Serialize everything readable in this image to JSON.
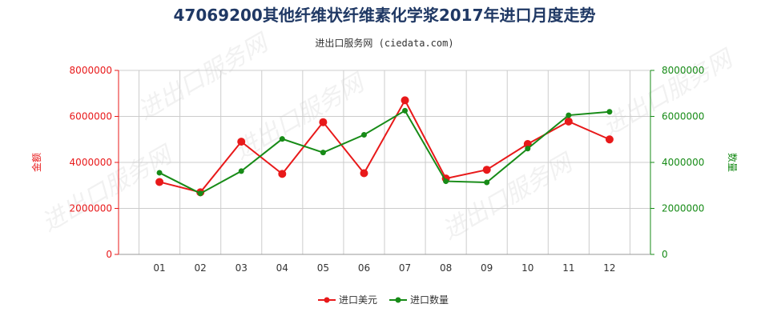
{
  "colors": {
    "red": "#e8191a",
    "green": "#178b17",
    "title": "#1f3864",
    "grid": "#cccccc",
    "axis": "#999999"
  },
  "watermark": "进出口服务网",
  "chart_data": {
    "type": "line",
    "title": "47069200其他纤维状纤维素化学浆2017年进口月度走势",
    "subtitle": "进出口服务网 (ciedata.com)",
    "categories": [
      "01",
      "02",
      "03",
      "04",
      "05",
      "06",
      "07",
      "08",
      "09",
      "10",
      "11",
      "12"
    ],
    "y_left": {
      "label": "金额",
      "ylim": [
        0,
        8000000
      ],
      "ticks": [
        "0",
        "2000000",
        "4000000",
        "6000000",
        "8000000"
      ]
    },
    "y_right": {
      "label": "数量",
      "ylim": [
        0,
        8000000
      ],
      "ticks": [
        "0",
        "2000000",
        "4000000",
        "6000000",
        "8000000"
      ]
    },
    "grid": true,
    "legend_position": "bottom",
    "series": [
      {
        "name": "进口美元",
        "axis": "left",
        "color": "#e8191a",
        "values": [
          3150000,
          2700000,
          4900000,
          3500000,
          5750000,
          3530000,
          6700000,
          3300000,
          3680000,
          4800000,
          5780000,
          5000000
        ]
      },
      {
        "name": "进口数量",
        "axis": "right",
        "color": "#178b17",
        "values": [
          3550000,
          2650000,
          3620000,
          5020000,
          4430000,
          5200000,
          6250000,
          3180000,
          3130000,
          4600000,
          6050000,
          6200000
        ]
      }
    ]
  }
}
